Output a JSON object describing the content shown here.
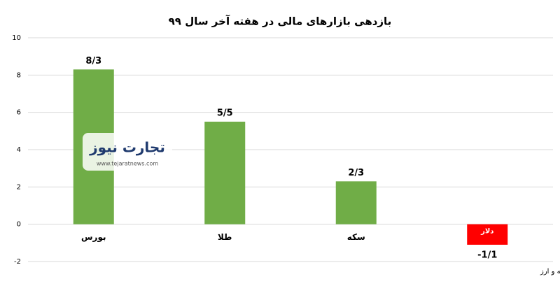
{
  "chart_data": {
    "type": "bar",
    "title": "بازدهی بازارهای مالی در هفته آخر سال ۹۹",
    "categories": [
      "بورس",
      "طلا",
      "سکه",
      "دلار"
    ],
    "values": [
      8.3,
      5.5,
      2.3,
      -1.1
    ],
    "value_labels": [
      "8/3",
      "5/5",
      "2/3",
      "-1/1"
    ],
    "colors": [
      "#70ad47",
      "#70ad47",
      "#70ad47",
      "#ff0000"
    ],
    "ylim": [
      -2,
      10
    ],
    "yticks": [
      -2,
      0,
      2,
      4,
      6,
      8,
      10
    ],
    "grid": true,
    "source": "منبع: سازمان بورس، صرافی ملی، شبکه اطلاع‌رسانی طلا، سکه و ارز",
    "watermark": {
      "brand": "تجارت نیوز",
      "url": "www.tejaratnews.com"
    }
  }
}
